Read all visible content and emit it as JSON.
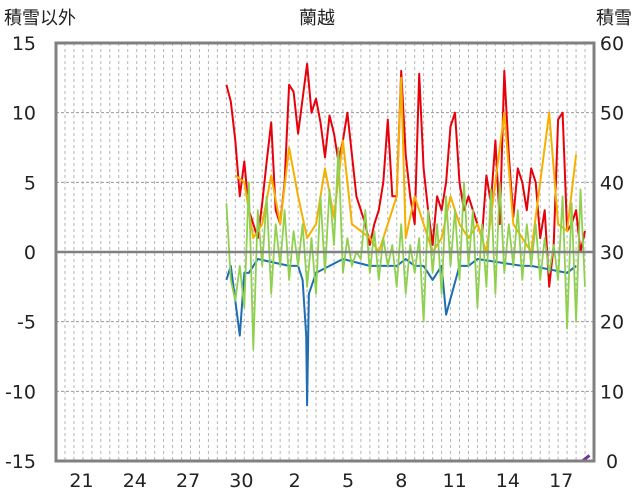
{
  "chart_data": {
    "type": "line",
    "title": "蘭越",
    "left_axis": {
      "label": "積雪以外",
      "ylim": [
        -15,
        15
      ],
      "ticks": [
        15,
        10,
        5,
        0,
        -5,
        -10,
        -15
      ]
    },
    "right_axis": {
      "label": "積雪",
      "ylim": [
        0,
        60
      ],
      "ticks": [
        60,
        50,
        40,
        30,
        20,
        10,
        0
      ]
    },
    "x_tick_labels": [
      "21",
      "24",
      "27",
      "30",
      "2",
      "5",
      "8",
      "11",
      "14",
      "17"
    ],
    "grid": true,
    "colors": {
      "red": "#e8000b",
      "orange": "#f5b000",
      "blue": "#1f6eb4",
      "green": "#8fd14f",
      "purple": "#7030a0",
      "axis": "#808080"
    },
    "series": [
      {
        "color_key": "red",
        "values": [
          [
            19,
            12
          ],
          [
            19.5,
            10.8
          ],
          [
            20,
            8
          ],
          [
            20.5,
            4
          ],
          [
            21,
            6.5
          ],
          [
            21.5,
            3
          ],
          [
            22,
            2
          ],
          [
            22.5,
            1
          ],
          [
            23,
            3.5
          ],
          [
            23.5,
            6.5
          ],
          [
            24,
            9.3
          ],
          [
            24.5,
            3
          ],
          [
            25,
            2
          ],
          [
            25.5,
            5
          ],
          [
            26,
            12
          ],
          [
            26.5,
            11.5
          ],
          [
            27,
            8.5
          ],
          [
            27.5,
            11
          ],
          [
            28,
            13.5
          ],
          [
            28.5,
            10
          ],
          [
            29,
            11
          ],
          [
            29.5,
            9.3
          ],
          [
            30,
            6.8
          ],
          [
            30.5,
            9.8
          ],
          [
            31,
            8.5
          ],
          [
            31.5,
            6.5
          ],
          [
            32,
            8
          ],
          [
            32.5,
            10
          ],
          [
            33,
            7
          ],
          [
            33.5,
            4
          ],
          [
            34.5,
            2
          ],
          [
            35,
            0.5
          ],
          [
            35.5,
            2
          ],
          [
            36,
            3
          ],
          [
            36.5,
            5
          ],
          [
            37,
            9.5
          ],
          [
            37.5,
            4
          ],
          [
            38,
            4
          ],
          [
            38.5,
            13
          ],
          [
            39,
            7
          ],
          [
            39.5,
            4
          ],
          [
            40,
            2
          ],
          [
            40.5,
            12.8
          ],
          [
            41,
            6
          ],
          [
            41.5,
            3
          ],
          [
            42,
            0.5
          ],
          [
            42.5,
            4
          ],
          [
            43,
            3
          ],
          [
            43.5,
            5
          ],
          [
            44,
            9
          ],
          [
            44.5,
            10
          ],
          [
            45,
            5
          ],
          [
            45.5,
            3
          ],
          [
            46,
            4
          ],
          [
            46.5,
            3
          ],
          [
            47,
            2
          ],
          [
            47.5,
            1
          ],
          [
            48,
            5.5
          ],
          [
            48.5,
            3.5
          ],
          [
            49,
            8
          ],
          [
            49.5,
            2
          ],
          [
            50,
            13
          ],
          [
            50.5,
            7
          ],
          [
            51,
            2.5
          ],
          [
            51.5,
            6
          ],
          [
            52,
            5
          ],
          [
            52.5,
            3
          ],
          [
            53,
            6
          ],
          [
            53.5,
            5
          ],
          [
            54,
            1
          ],
          [
            54.5,
            3
          ],
          [
            55,
            -2.5
          ],
          [
            55.5,
            0.5
          ],
          [
            56,
            9.5
          ],
          [
            56.5,
            10
          ],
          [
            57,
            1.5
          ],
          [
            57.5,
            2
          ],
          [
            58,
            3
          ],
          [
            58.5,
            0
          ],
          [
            59,
            1.5
          ]
        ]
      },
      {
        "color_key": "orange",
        "values": [
          [
            20,
            5.5
          ],
          [
            21,
            5
          ],
          [
            22,
            1
          ],
          [
            23,
            2
          ],
          [
            24,
            5.5
          ],
          [
            25,
            2
          ],
          [
            26,
            7.5
          ],
          [
            27,
            4
          ],
          [
            28,
            1
          ],
          [
            29,
            2
          ],
          [
            30,
            6
          ],
          [
            31,
            2.5
          ],
          [
            32,
            8
          ],
          [
            33,
            2
          ],
          [
            35,
            1
          ],
          [
            36,
            0
          ],
          [
            37,
            2
          ],
          [
            38,
            4
          ],
          [
            38.5,
            12.5
          ],
          [
            39,
            1
          ],
          [
            40,
            4
          ],
          [
            41,
            2
          ],
          [
            42,
            0
          ],
          [
            43,
            1
          ],
          [
            44,
            4
          ],
          [
            45,
            2
          ],
          [
            46,
            1
          ],
          [
            47,
            2
          ],
          [
            48,
            0
          ],
          [
            49,
            5
          ],
          [
            50,
            10
          ],
          [
            51,
            2
          ],
          [
            52,
            1
          ],
          [
            53,
            0
          ],
          [
            54,
            5
          ],
          [
            55,
            10
          ],
          [
            56,
            2
          ],
          [
            57,
            1.5
          ],
          [
            58,
            7
          ]
        ]
      },
      {
        "color_key": "blue",
        "values": [
          [
            19,
            -2
          ],
          [
            19.5,
            -1
          ],
          [
            20.5,
            -6
          ],
          [
            21,
            -1.5
          ],
          [
            21.5,
            -1.5
          ],
          [
            22,
            -1
          ],
          [
            22.5,
            -0.5
          ],
          [
            26,
            -1
          ],
          [
            27,
            -1
          ],
          [
            27.5,
            -2
          ],
          [
            27.9,
            -6
          ],
          [
            28,
            -11
          ],
          [
            28.2,
            -3
          ],
          [
            29,
            -1.5
          ],
          [
            32,
            -0.5
          ],
          [
            35,
            -1
          ],
          [
            36,
            -1
          ],
          [
            36.5,
            -1
          ],
          [
            38,
            -1
          ],
          [
            39,
            -0.5
          ],
          [
            40,
            -1
          ],
          [
            41,
            -1
          ],
          [
            42,
            -2
          ],
          [
            43,
            -1
          ],
          [
            43.5,
            -4.5
          ],
          [
            45,
            -1
          ],
          [
            46,
            -1
          ],
          [
            47,
            -0.5
          ],
          [
            52,
            -1
          ],
          [
            53,
            -1
          ],
          [
            57,
            -1.5
          ],
          [
            58,
            -1
          ]
        ]
      },
      {
        "color_key": "green",
        "values": [
          [
            19,
            3.5
          ],
          [
            19.5,
            -2
          ],
          [
            20,
            -3.5
          ],
          [
            20.5,
            -1
          ],
          [
            21,
            -4
          ],
          [
            21.5,
            5
          ],
          [
            22,
            -7
          ],
          [
            22.5,
            3
          ],
          [
            23,
            -1
          ],
          [
            23.5,
            4
          ],
          [
            24,
            -3
          ],
          [
            24.5,
            2
          ],
          [
            25,
            -1
          ],
          [
            25.5,
            3
          ],
          [
            26,
            -2
          ],
          [
            26.5,
            1.5
          ],
          [
            27,
            -1
          ],
          [
            27.5,
            2
          ],
          [
            28,
            -2.5
          ],
          [
            28.5,
            1
          ],
          [
            29,
            -3
          ],
          [
            29.5,
            4
          ],
          [
            30,
            -1.5
          ],
          [
            30.5,
            4.5
          ],
          [
            31,
            0.5
          ],
          [
            31.5,
            7.5
          ],
          [
            32,
            -1.5
          ],
          [
            32.5,
            1
          ],
          [
            33,
            -1
          ],
          [
            33.5,
            0
          ],
          [
            34,
            -0.5
          ],
          [
            34.5,
            3
          ],
          [
            35,
            -1.5
          ],
          [
            35.5,
            1.5
          ],
          [
            36,
            -2
          ],
          [
            36.5,
            1
          ],
          [
            37,
            -1
          ],
          [
            37.5,
            0.5
          ],
          [
            38,
            -2.5
          ],
          [
            38.5,
            2
          ],
          [
            39,
            -3
          ],
          [
            39.5,
            0.5
          ],
          [
            40,
            -1.5
          ],
          [
            40.5,
            1
          ],
          [
            41,
            -5
          ],
          [
            41.5,
            3
          ],
          [
            42,
            -1.5
          ],
          [
            42.5,
            2
          ],
          [
            43,
            -3
          ],
          [
            43.5,
            4
          ],
          [
            44,
            -1
          ],
          [
            44.5,
            3
          ],
          [
            45,
            -2
          ],
          [
            45.5,
            5
          ],
          [
            46,
            -1
          ],
          [
            46.5,
            3
          ],
          [
            47,
            -4
          ],
          [
            47.5,
            2
          ],
          [
            48,
            -2.5
          ],
          [
            48.5,
            4.5
          ],
          [
            49,
            -3
          ],
          [
            49.5,
            5
          ],
          [
            50,
            -1.5
          ],
          [
            50.5,
            2
          ],
          [
            51,
            -1
          ],
          [
            51.5,
            3
          ],
          [
            52,
            -2
          ],
          [
            52.5,
            2
          ],
          [
            53,
            -1
          ],
          [
            53.5,
            2
          ],
          [
            54,
            -2
          ],
          [
            54.5,
            1
          ],
          [
            55,
            -1.5
          ],
          [
            55.5,
            0.5
          ],
          [
            56,
            -2
          ],
          [
            56.5,
            4
          ],
          [
            57,
            -5.5
          ],
          [
            57.5,
            3.5
          ],
          [
            58,
            -5
          ],
          [
            58.5,
            4.5
          ],
          [
            59,
            -2.5
          ]
        ]
      },
      {
        "axis": "right",
        "color_key": "purple",
        "values": [
          [
            0,
            0
          ],
          [
            58.7,
            0
          ],
          [
            59.5,
            0.8
          ]
        ]
      }
    ]
  }
}
